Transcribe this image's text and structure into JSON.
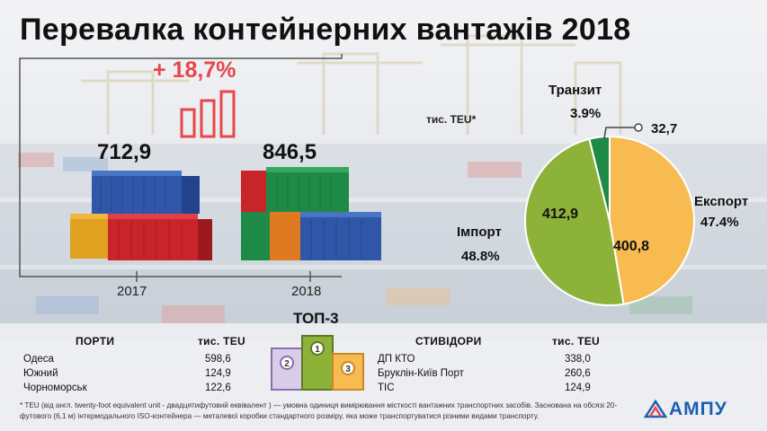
{
  "title": "Перевалка контейнерних вантажів 2018",
  "growth": "+ 18,7%",
  "chart_data": [
    {
      "type": "bar",
      "categories": [
        "2017",
        "2018"
      ],
      "values": [
        712.9,
        846.5
      ],
      "value_labels": [
        "712,9",
        "846,5"
      ],
      "growth_label": "+ 18,7%"
    },
    {
      "type": "pie",
      "unit": "тис. TEU*",
      "slices": [
        {
          "name": "Експорт",
          "percent_label": "47.4%",
          "value": 400.8,
          "value_label": "400,8",
          "color": "#f7bb52"
        },
        {
          "name": "Імпорт",
          "percent_label": "48.8%",
          "value": 412.9,
          "value_label": "412,9",
          "color": "#8db23a"
        },
        {
          "name": "Транзит",
          "percent_label": "3.9%",
          "value": 32.7,
          "value_label": "32,7",
          "color": "#1f8a45"
        }
      ]
    }
  ],
  "ports": {
    "header": "ПОРТИ",
    "unit_header": "тис. TEU",
    "rows": [
      {
        "name": "Одеса",
        "value": "598,6"
      },
      {
        "name": "Южний",
        "value": "124,9"
      },
      {
        "name": "Чорноморськ",
        "value": "122,6"
      }
    ]
  },
  "top3": {
    "title": "ТОП-3",
    "places": [
      "1",
      "2",
      "3"
    ],
    "colors": {
      "first": "#8db23a",
      "second": "#8a6fae",
      "third": "#f7bb52"
    }
  },
  "stevedores": {
    "header": "СТИВІДОРИ",
    "unit_header": "тис. TEU",
    "rows": [
      {
        "name": "ДП КТО",
        "value": "338,0"
      },
      {
        "name": "Бруклін-Київ Порт",
        "value": "260,6"
      },
      {
        "name": "ТІС",
        "value": "124,9"
      }
    ]
  },
  "footnote": "* TEU (від англ. twenty-foot equivalent unit - двадцятифутовий еквівалент ) — умовна одиниця вимірювання місткості вантажних транспортних засобів. Заснована на обсязі 20-футового (6,1 м) інтермодального ISO-контейнера — металевої коробки стандартного розміру, яка може транспортуватися різними видами транспорту.",
  "logo": "АМПУ",
  "colors": {
    "accent_red": "#e8464b",
    "logo_blue": "#1a5fb4"
  }
}
